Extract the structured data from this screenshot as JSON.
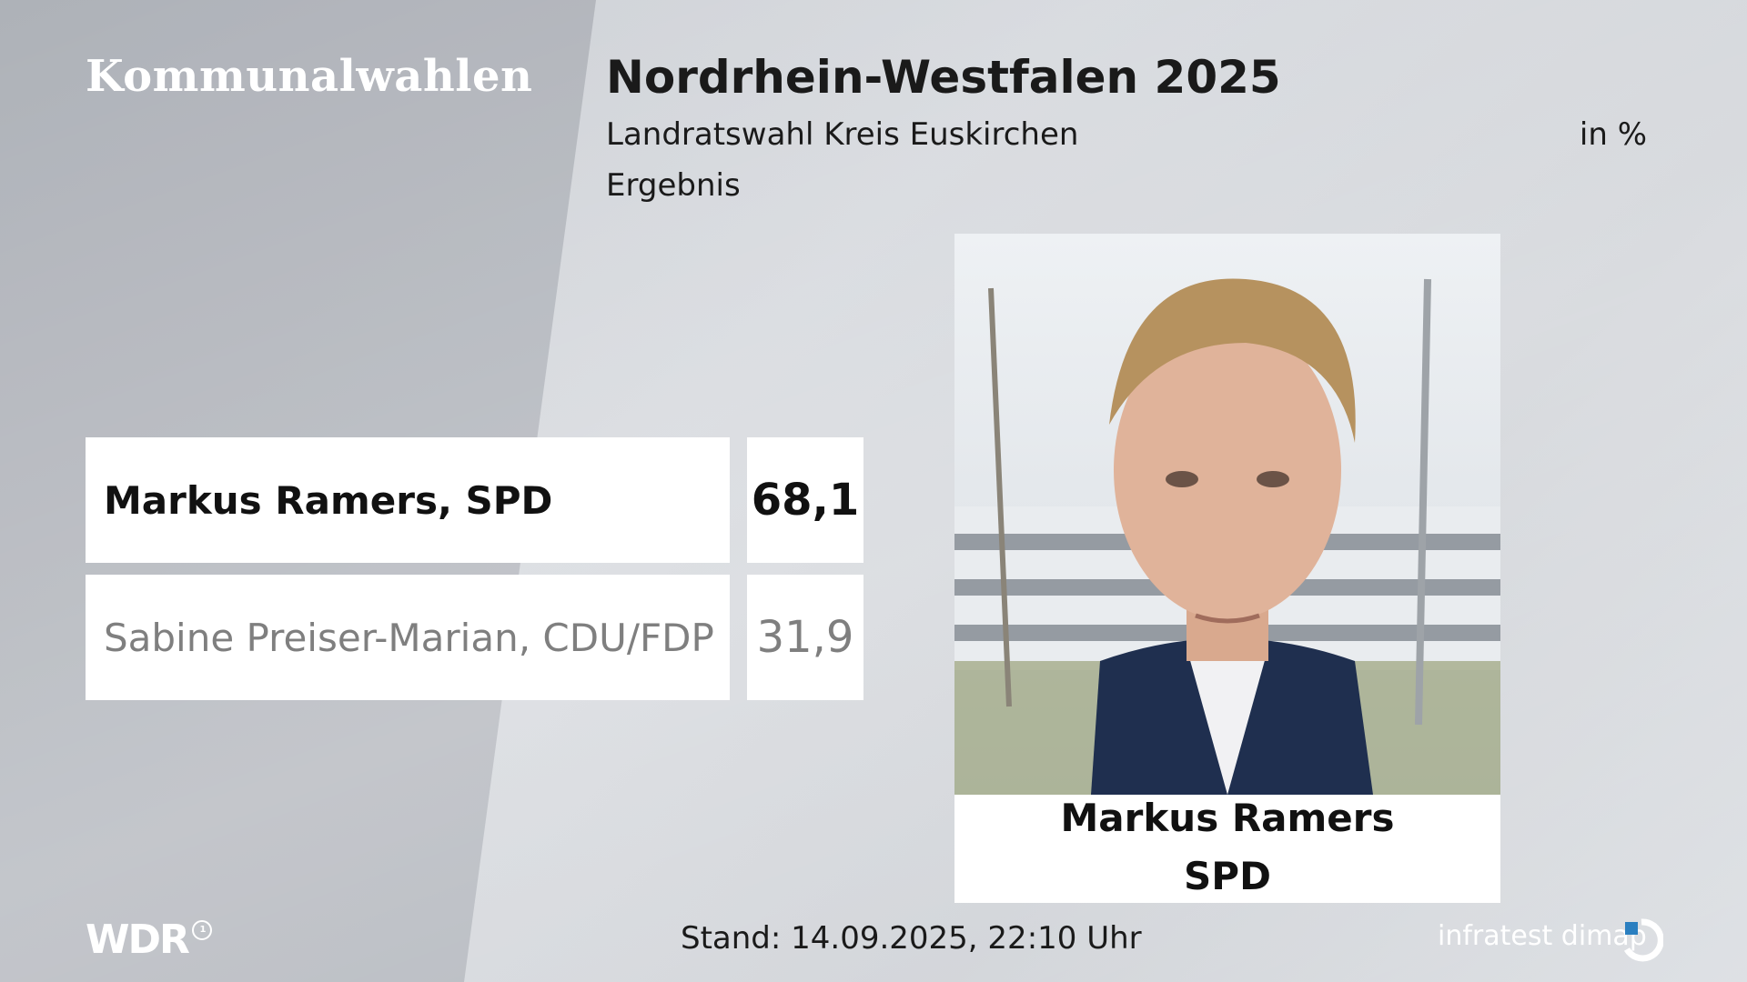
{
  "header": {
    "brand": "Kommunalwahlen",
    "title": "Nordrhein-Westfalen 2025",
    "subtitle": "Landratswahl Kreis Euskirchen",
    "status": "Ergebnis",
    "unit": "in %"
  },
  "chart_data": {
    "type": "table",
    "unit": "in %",
    "rows": [
      {
        "label": "Markus Ramers, SPD",
        "value": 68.1,
        "display": "68,1",
        "winner": true
      },
      {
        "label": "Sabine Preiser-Marian, CDU/FDP",
        "value": 31.9,
        "display": "31,9",
        "winner": false
      }
    ]
  },
  "winner_card": {
    "name": "Markus Ramers",
    "party": "SPD"
  },
  "footer": {
    "broadcaster_logo": "WDR",
    "broadcaster_mark": "1",
    "stand": "Stand: 14.09.2025, 22:10 Uhr",
    "pollster": "infratest dimap"
  },
  "colors": {
    "winner_text": "#111111",
    "other_text": "#7f7f7f",
    "box_background": "#ffffff"
  }
}
